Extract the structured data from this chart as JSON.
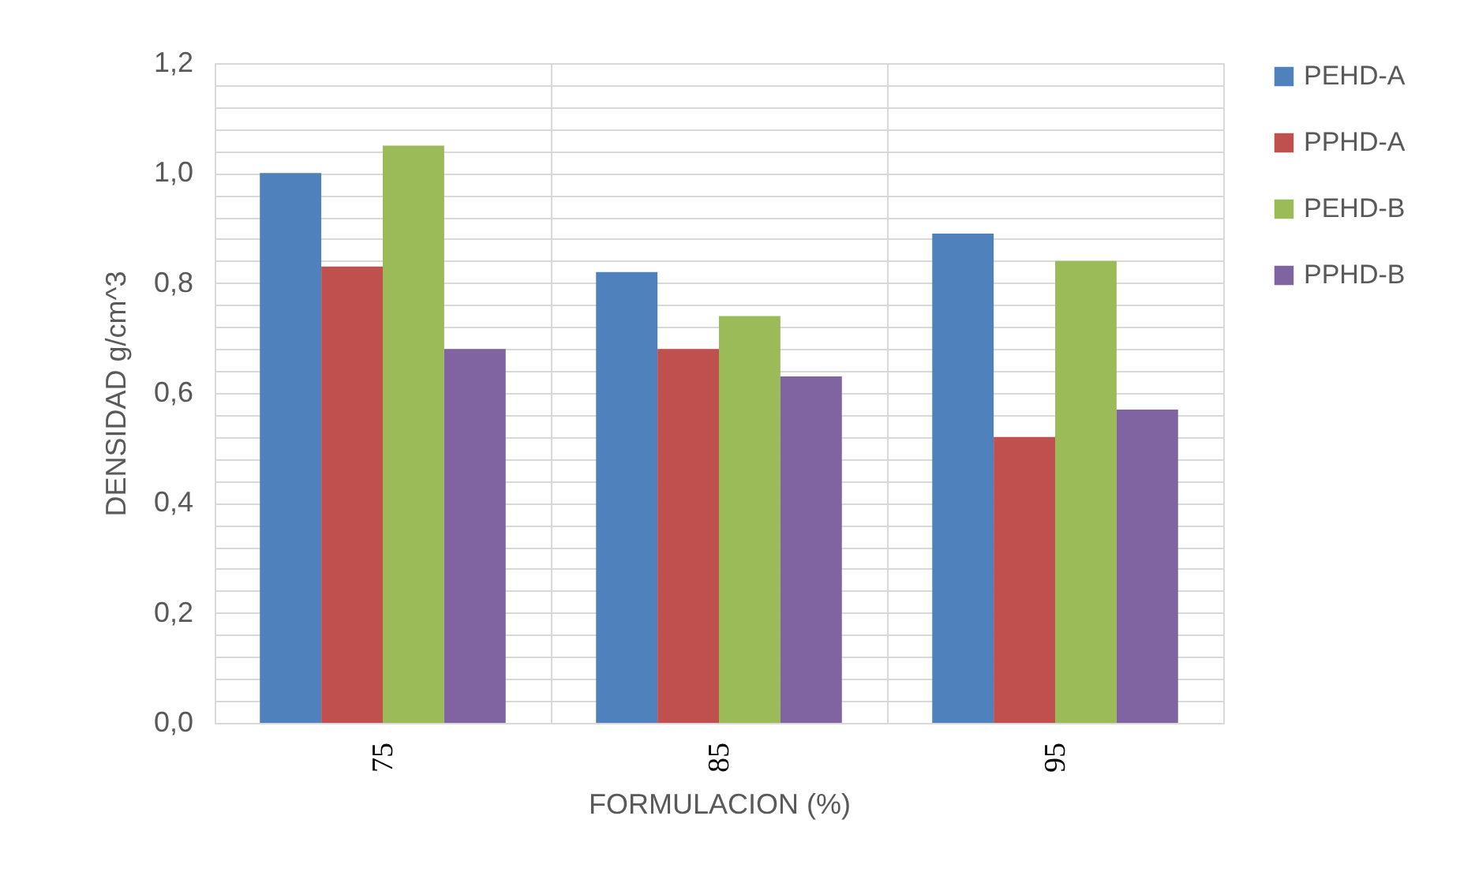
{
  "chart_data": {
    "type": "bar",
    "xlabel": "FORMULACION (%)",
    "ylabel": "DENSIDAD g/cm^3",
    "categories": [
      "75",
      "85",
      "95"
    ],
    "series": [
      {
        "name": "PEHD-A",
        "color": "#4f81bd",
        "values": [
          1.0,
          0.82,
          0.89
        ]
      },
      {
        "name": "PPHD-A",
        "color": "#c0504d",
        "values": [
          0.83,
          0.68,
          0.52
        ]
      },
      {
        "name": "PEHD-B",
        "color": "#9bbb59",
        "values": [
          1.05,
          0.74,
          0.84
        ]
      },
      {
        "name": "PPHD-B",
        "color": "#8064a2",
        "values": [
          0.68,
          0.63,
          0.57
        ]
      }
    ],
    "ylim": [
      0,
      1.2
    ],
    "yticks": [
      {
        "value": 0,
        "label": "0,0"
      },
      {
        "value": 0.04,
        "label": null
      },
      {
        "value": 0.08,
        "label": null
      },
      {
        "value": 0.12,
        "label": null
      },
      {
        "value": 0.16,
        "label": null
      },
      {
        "value": 0.2,
        "label": "0,2"
      },
      {
        "value": 0.24,
        "label": null
      },
      {
        "value": 0.28,
        "label": null
      },
      {
        "value": 0.32,
        "label": null
      },
      {
        "value": 0.36,
        "label": null
      },
      {
        "value": 0.4,
        "label": "0,4"
      },
      {
        "value": 0.44,
        "label": null
      },
      {
        "value": 0.48,
        "label": null
      },
      {
        "value": 0.52,
        "label": null
      },
      {
        "value": 0.56,
        "label": null
      },
      {
        "value": 0.6,
        "label": "0,6"
      },
      {
        "value": 0.64,
        "label": null
      },
      {
        "value": 0.68,
        "label": null
      },
      {
        "value": 0.72,
        "label": null
      },
      {
        "value": 0.76,
        "label": null
      },
      {
        "value": 0.8,
        "label": "0,8"
      },
      {
        "value": 0.84,
        "label": null
      },
      {
        "value": 0.88,
        "label": null
      },
      {
        "value": 0.92,
        "label": null
      },
      {
        "value": 0.96,
        "label": null
      },
      {
        "value": 1.0,
        "label": "1,0"
      },
      {
        "value": 1.04,
        "label": null
      },
      {
        "value": 1.08,
        "label": null
      },
      {
        "value": 1.12,
        "label": null
      },
      {
        "value": 1.16,
        "label": null
      },
      {
        "value": 1.2,
        "label": "1,2"
      }
    ],
    "grid": true,
    "legend": "right"
  }
}
